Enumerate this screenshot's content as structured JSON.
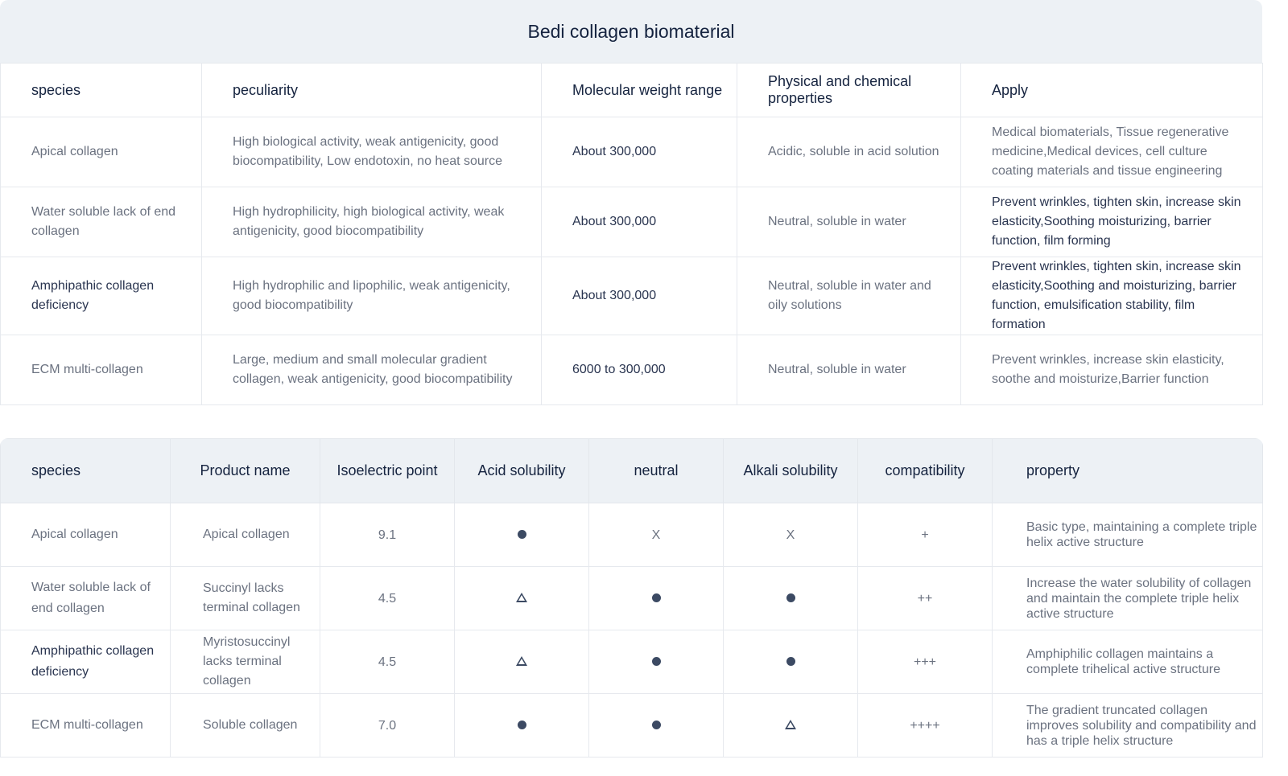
{
  "table1": {
    "title": "Bedi collagen biomaterial",
    "headers": [
      "species",
      "peculiarity",
      "Molecular weight range",
      "Physical and chemical properties",
      "Apply"
    ],
    "rows": [
      [
        "Apical collagen",
        "High biological activity, weak antigenicity, good biocompatibility, Low endotoxin, no heat source",
        "About 300,000",
        "Acidic, soluble in acid solution",
        "Medical biomaterials, Tissue regenerative medicine,Medical devices, cell culture coating materials and tissue engineering"
      ],
      [
        "Water soluble lack of end collagen",
        "High hydrophilicity, high biological activity, weak antigenicity, good biocompatibility",
        "About 300,000",
        "Neutral, soluble in water",
        "Prevent wrinkles, tighten skin, increase skin elasticity,Soothing moisturizing, barrier function, film forming"
      ],
      [
        "Amphipathic collagen deficiency",
        "High hydrophilic and lipophilic, weak antigenicity, good biocompatibility",
        "About 300,000",
        "Neutral, soluble in water and oily solutions",
        "Prevent wrinkles, tighten skin, increase skin elasticity,Soothing and moisturizing, barrier function, emulsification stability, film formation"
      ],
      [
        "ECM multi-collagen",
        "Large, medium and small molecular gradient collagen, weak antigenicity, good biocompatibility",
        "6000 to 300,000",
        "Neutral, soluble in water",
        "Prevent wrinkles, increase skin elasticity, soothe and moisturize,Barrier function"
      ]
    ]
  },
  "table2": {
    "headers": [
      "species",
      "Product name",
      "Isoelectric point",
      "Acid solubility",
      "neutral",
      "Alkali solubility",
      "compatibility",
      "property"
    ],
    "rows": [
      [
        "Apical collagen",
        "Apical collagen",
        "9.1",
        "dot",
        "X",
        "X",
        "+",
        "Basic type, maintaining a complete triple helix active structure"
      ],
      [
        "Water soluble lack of end collagen",
        "Succinyl lacks terminal collagen",
        "4.5",
        "triangle",
        "dot",
        "dot",
        "++",
        "Increase the water solubility of collagen and maintain the complete triple helix active structure"
      ],
      [
        "Amphipathic collagen deficiency",
        "Myristosuccinyl lacks terminal collagen",
        "4.5",
        "triangle",
        "dot",
        "dot",
        "+++",
        "Amphiphilic collagen maintains a complete trihelical active structure"
      ],
      [
        "ECM multi-collagen",
        "Soluble collagen",
        "7.0",
        "dot",
        "dot",
        "triangle",
        "++++",
        "The gradient truncated collagen improves solubility and compatibility and has a triple helix structure"
      ]
    ]
  }
}
